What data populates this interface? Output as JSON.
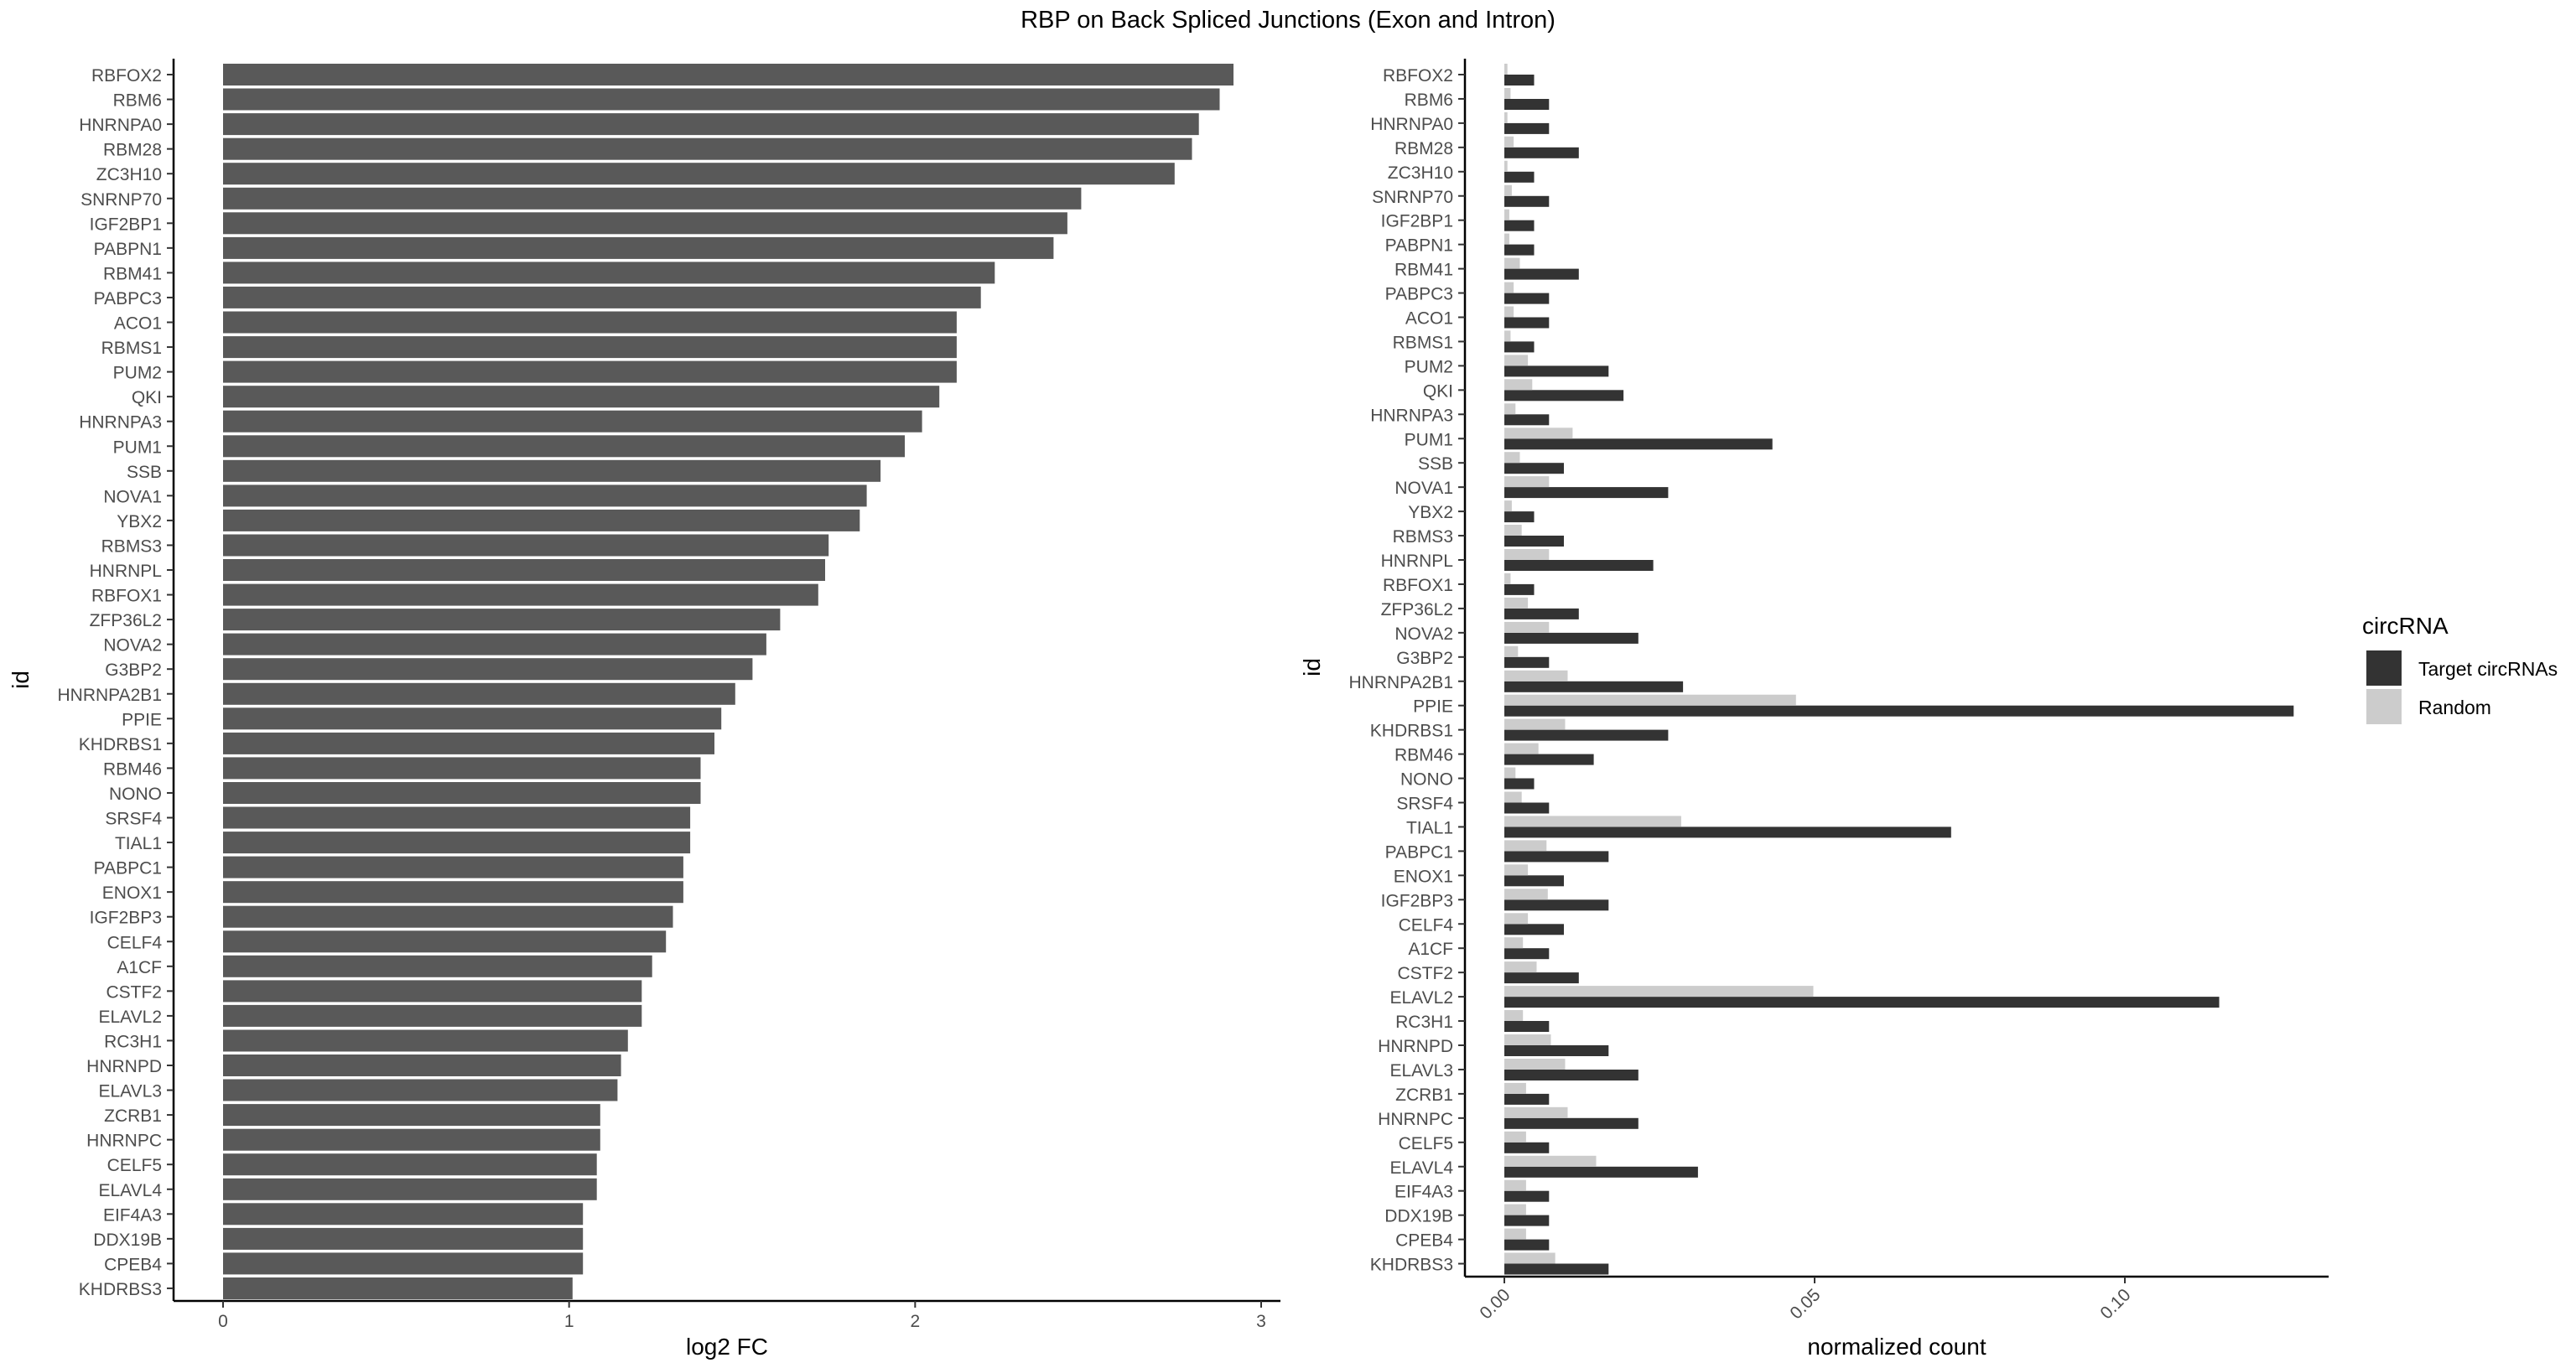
{
  "title": "RBP on Back Spliced Junctions (Exon and Intron)",
  "colors": {
    "bar_left": "#595959",
    "target": "#333333",
    "random": "#cccccc",
    "axis": "#000000",
    "tick_label": "#4d4d4d"
  },
  "chart_data": [
    {
      "type": "bar",
      "orientation": "horizontal",
      "xlabel": "log2 FC",
      "ylabel": "id",
      "xlim": [
        0,
        3
      ],
      "xticks": [
        "0",
        "1",
        "2",
        "3"
      ],
      "categories": [
        "RBFOX2",
        "RBM6",
        "HNRNPA0",
        "RBM28",
        "ZC3H10",
        "SNRNP70",
        "IGF2BP1",
        "PABPN1",
        "RBM41",
        "PABPC3",
        "ACO1",
        "RBMS1",
        "PUM2",
        "QKI",
        "HNRNPA3",
        "PUM1",
        "SSB",
        "NOVA1",
        "YBX2",
        "RBMS3",
        "HNRNPL",
        "RBFOX1",
        "ZFP36L2",
        "NOVA2",
        "G3BP2",
        "HNRNPA2B1",
        "PPIE",
        "KHDRBS1",
        "RBM46",
        "NONO",
        "SRSF4",
        "TIAL1",
        "PABPC1",
        "ENOX1",
        "IGF2BP3",
        "CELF4",
        "A1CF",
        "CSTF2",
        "ELAVL2",
        "RC3H1",
        "HNRNPD",
        "ELAVL3",
        "ZCRB1",
        "HNRNPC",
        "CELF5",
        "ELAVL4",
        "EIF4A3",
        "DDX19B",
        "CPEB4",
        "KHDRBS3"
      ],
      "values": [
        2.92,
        2.88,
        2.82,
        2.8,
        2.75,
        2.48,
        2.44,
        2.4,
        2.23,
        2.19,
        2.12,
        2.12,
        2.12,
        2.07,
        2.02,
        1.97,
        1.9,
        1.86,
        1.84,
        1.75,
        1.74,
        1.72,
        1.61,
        1.57,
        1.53,
        1.48,
        1.44,
        1.42,
        1.38,
        1.38,
        1.35,
        1.35,
        1.33,
        1.33,
        1.3,
        1.28,
        1.24,
        1.21,
        1.21,
        1.17,
        1.15,
        1.14,
        1.09,
        1.09,
        1.08,
        1.08,
        1.04,
        1.04,
        1.04,
        1.01
      ]
    },
    {
      "type": "bar",
      "orientation": "horizontal",
      "grouped": true,
      "xlabel": "normalized count",
      "ylabel": "id",
      "xlim": [
        -0.001,
        0.132
      ],
      "xticks": [
        "0.00",
        "0.05",
        "0.10"
      ],
      "legend_title": "circRNA",
      "legend_position": "right",
      "categories": [
        "RBFOX2",
        "RBM6",
        "HNRNPA0",
        "RBM28",
        "ZC3H10",
        "SNRNP70",
        "IGF2BP1",
        "PABPN1",
        "RBM41",
        "PABPC3",
        "ACO1",
        "RBMS1",
        "PUM2",
        "QKI",
        "HNRNPA3",
        "PUM1",
        "SSB",
        "NOVA1",
        "YBX2",
        "RBMS3",
        "HNRNPL",
        "RBFOX1",
        "ZFP36L2",
        "NOVA2",
        "G3BP2",
        "HNRNPA2B1",
        "PPIE",
        "KHDRBS1",
        "RBM46",
        "NONO",
        "SRSF4",
        "TIAL1",
        "PABPC1",
        "ENOX1",
        "IGF2BP3",
        "CELF4",
        "A1CF",
        "CSTF2",
        "ELAVL2",
        "RC3H1",
        "HNRNPD",
        "ELAVL3",
        "ZCRB1",
        "HNRNPC",
        "CELF5",
        "ELAVL4",
        "EIF4A3",
        "DDX19B",
        "CPEB4",
        "KHDRBS3"
      ],
      "series": [
        {
          "name": "Target circRNAs",
          "values": [
            0.0048,
            0.0072,
            0.0072,
            0.012,
            0.0048,
            0.0072,
            0.0048,
            0.0048,
            0.012,
            0.0072,
            0.0072,
            0.0048,
            0.0168,
            0.0192,
            0.0072,
            0.0432,
            0.0096,
            0.0264,
            0.0048,
            0.0096,
            0.024,
            0.0048,
            0.012,
            0.0216,
            0.0072,
            0.0288,
            0.1272,
            0.0264,
            0.0144,
            0.0048,
            0.0072,
            0.072,
            0.0168,
            0.0096,
            0.0168,
            0.0096,
            0.0072,
            0.012,
            0.1152,
            0.0072,
            0.0168,
            0.0216,
            0.0072,
            0.0216,
            0.0072,
            0.0312,
            0.0072,
            0.0072,
            0.0072,
            0.0168
          ]
        },
        {
          "name": "Random",
          "values": [
            0.0005,
            0.001,
            0.0005,
            0.0015,
            0.0005,
            0.0012,
            0.0008,
            0.0008,
            0.0025,
            0.0015,
            0.0015,
            0.001,
            0.0038,
            0.0045,
            0.0018,
            0.011,
            0.0025,
            0.0072,
            0.0012,
            0.0028,
            0.0072,
            0.001,
            0.0038,
            0.0072,
            0.0022,
            0.0102,
            0.047,
            0.0098,
            0.0055,
            0.0018,
            0.0028,
            0.0285,
            0.0068,
            0.0038,
            0.007,
            0.0038,
            0.003,
            0.0052,
            0.0498,
            0.003,
            0.0075,
            0.0098,
            0.0035,
            0.0102,
            0.0035,
            0.0148,
            0.0035,
            0.0035,
            0.0035,
            0.0082
          ]
        }
      ]
    }
  ]
}
